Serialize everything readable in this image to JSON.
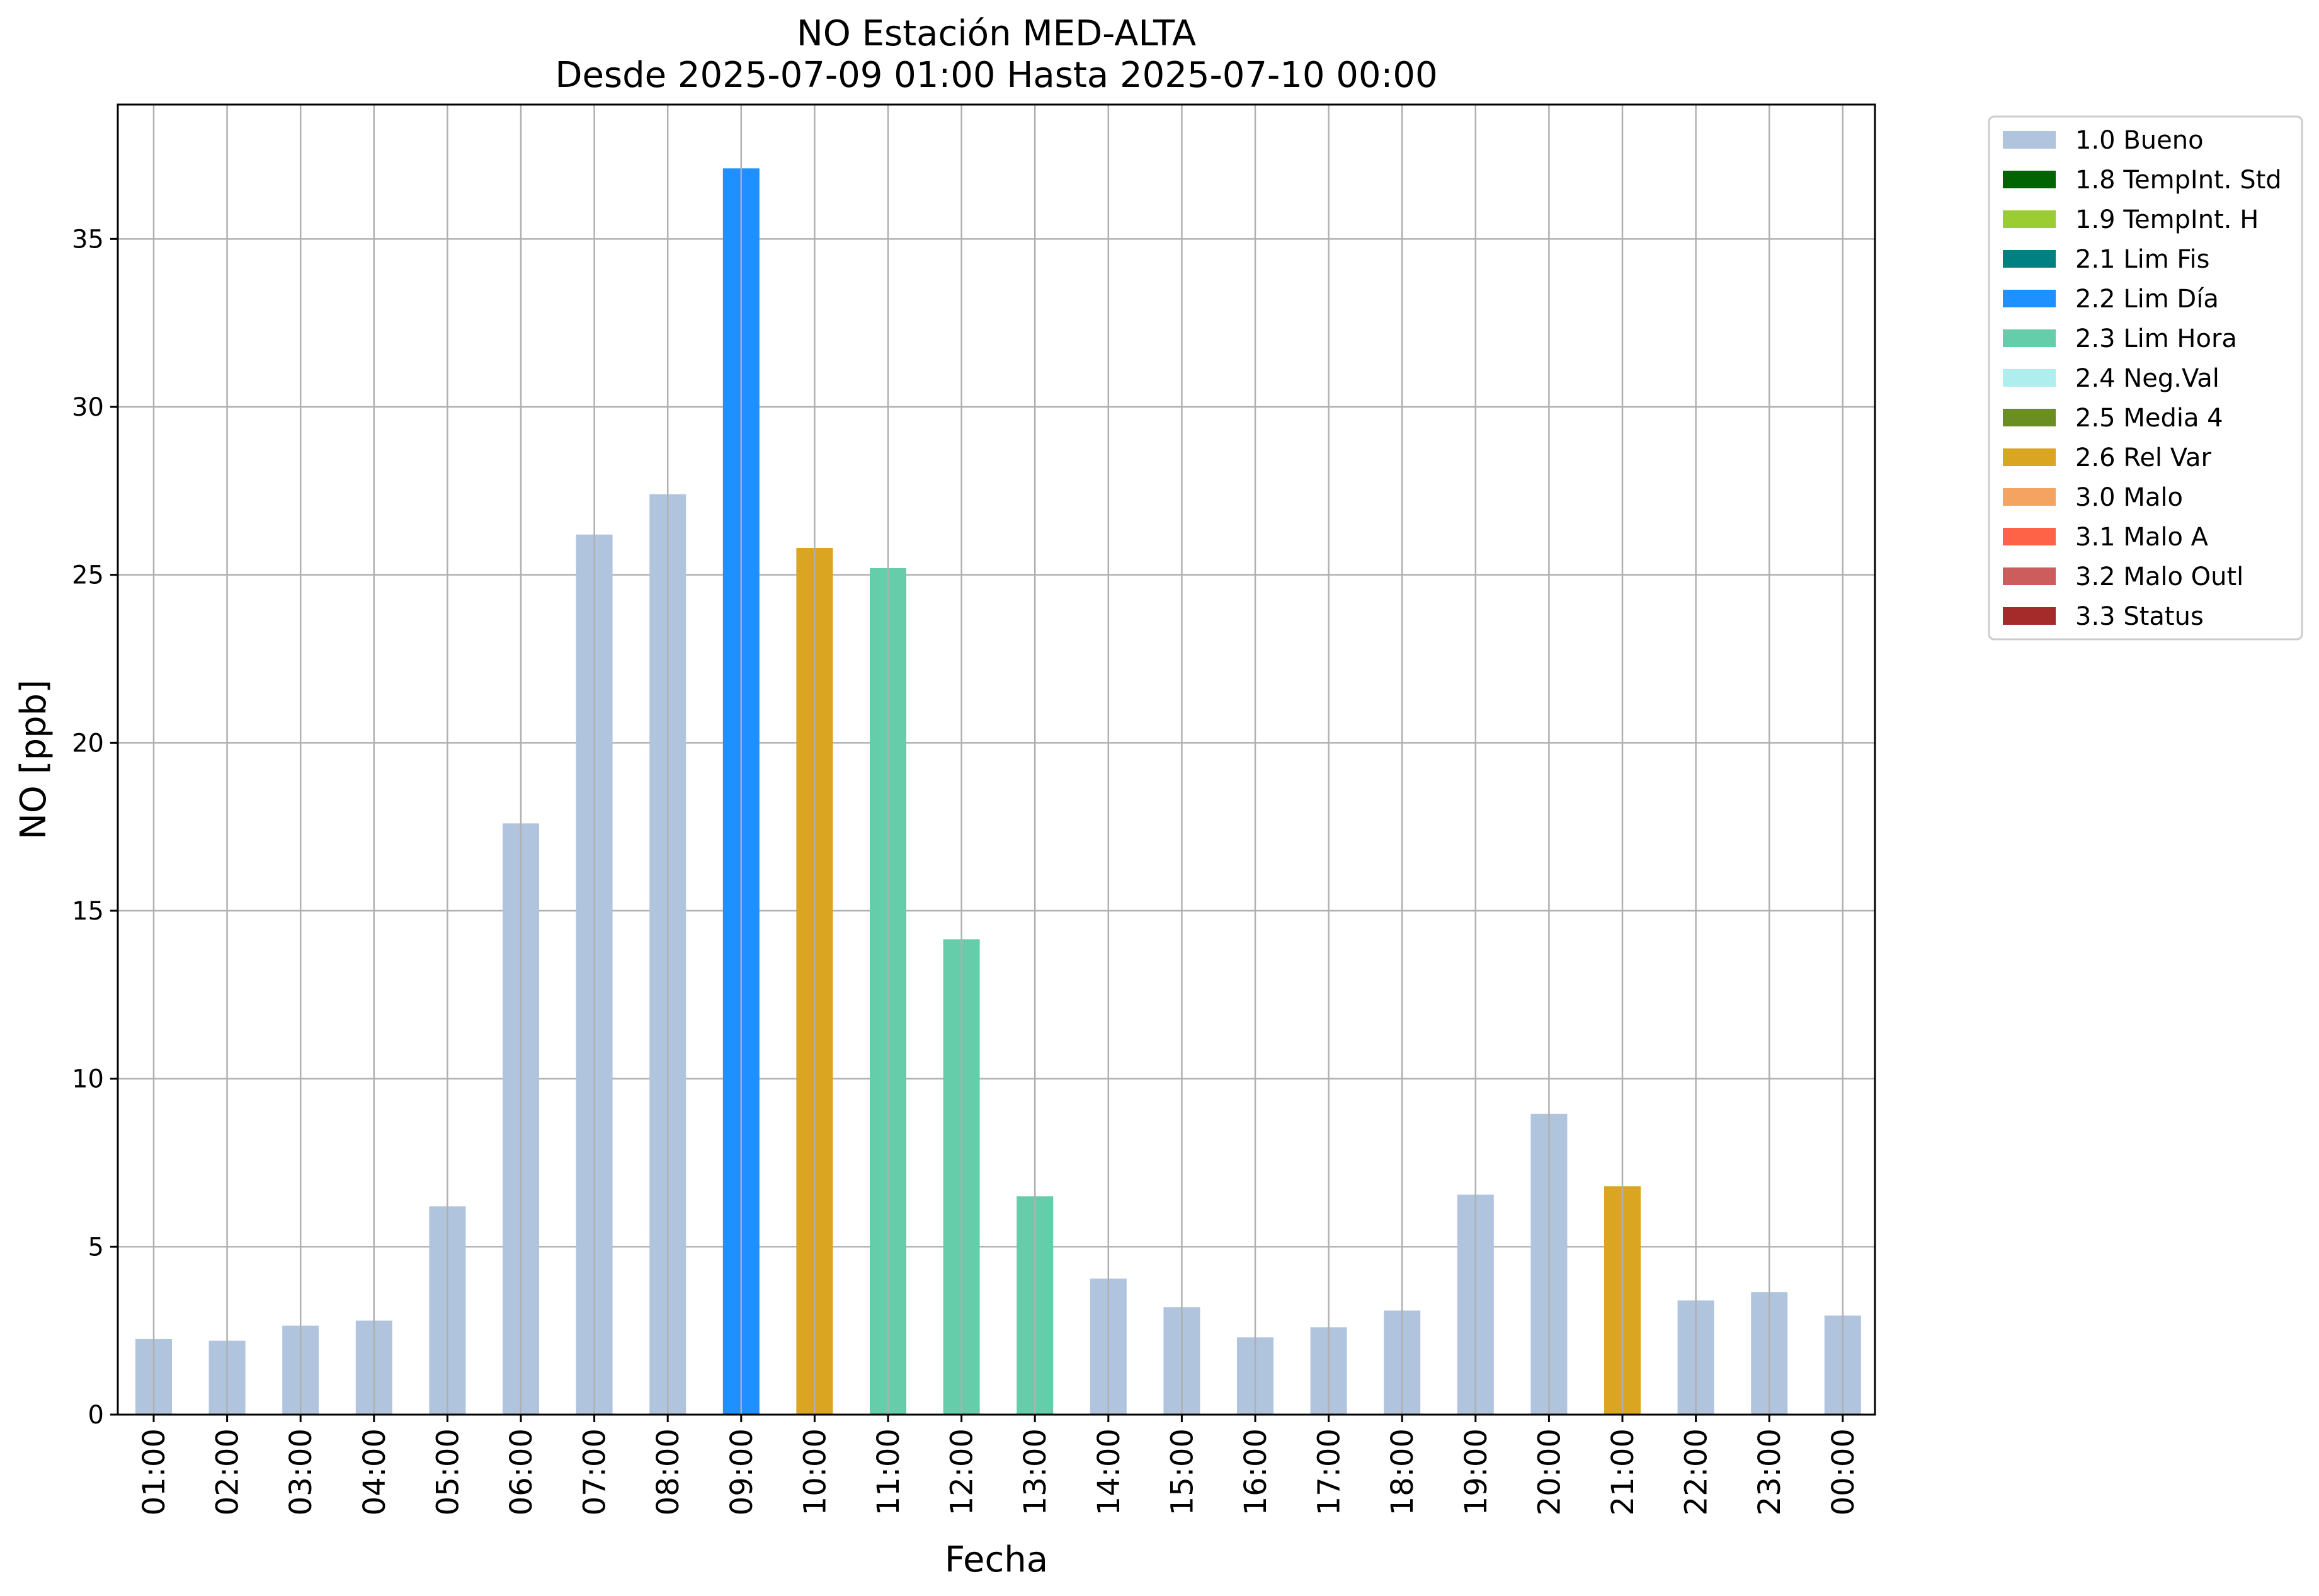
{
  "chart_data": {
    "type": "bar",
    "title": "NO Estación MED-ALTA",
    "subtitle": "Desde 2025-07-09 01:00 Hasta 2025-07-10 00:00",
    "xlabel": "Fecha",
    "ylabel": "NO [ppb]",
    "ylim": [
      0,
      39
    ],
    "yticks": [
      0,
      5,
      10,
      15,
      20,
      25,
      30,
      35
    ],
    "grid": true,
    "legend_position": "outside-top-right",
    "categories": [
      "01:00",
      "02:00",
      "03:00",
      "04:00",
      "05:00",
      "06:00",
      "07:00",
      "08:00",
      "09:00",
      "10:00",
      "11:00",
      "12:00",
      "13:00",
      "14:00",
      "15:00",
      "16:00",
      "17:00",
      "18:00",
      "19:00",
      "20:00",
      "21:00",
      "22:00",
      "23:00",
      "00:00"
    ],
    "values": [
      2.25,
      2.2,
      2.65,
      2.8,
      6.2,
      17.6,
      26.2,
      27.4,
      37.1,
      25.8,
      25.2,
      14.15,
      6.5,
      4.05,
      3.2,
      2.3,
      2.6,
      3.1,
      6.55,
      8.95,
      6.8,
      3.4,
      3.65,
      2.95
    ],
    "flags": [
      "1.0 Bueno",
      "1.0 Bueno",
      "1.0 Bueno",
      "1.0 Bueno",
      "1.0 Bueno",
      "1.0 Bueno",
      "1.0 Bueno",
      "1.0 Bueno",
      "2.2 Lim Día",
      "2.6 Rel Var",
      "2.3 Lim Hora",
      "2.3 Lim Hora",
      "2.3 Lim Hora",
      "1.0 Bueno",
      "1.0 Bueno",
      "1.0 Bueno",
      "1.0 Bueno",
      "1.0 Bueno",
      "1.0 Bueno",
      "1.0 Bueno",
      "2.6 Rel Var",
      "1.0 Bueno",
      "1.0 Bueno",
      "1.0 Bueno"
    ],
    "legend": [
      {
        "label": "1.0 Bueno",
        "color": "#b0c4de"
      },
      {
        "label": "1.8 TempInt. Std",
        "color": "#006400"
      },
      {
        "label": "1.9 TempInt. H",
        "color": "#9acd32"
      },
      {
        "label": "2.1 Lim Fis",
        "color": "#008080"
      },
      {
        "label": "2.2 Lim Día",
        "color": "#1e90ff"
      },
      {
        "label": "2.3 Lim Hora",
        "color": "#66cdaa"
      },
      {
        "label": "2.4 Neg.Val",
        "color": "#afeeee"
      },
      {
        "label": "2.5 Media 4",
        "color": "#6b8e23"
      },
      {
        "label": "2.6 Rel Var",
        "color": "#daa520"
      },
      {
        "label": "3.0 Malo",
        "color": "#f4a460"
      },
      {
        "label": "3.1 Malo A",
        "color": "#ff6347"
      },
      {
        "label": "3.2 Malo Outl",
        "color": "#cd5c5c"
      },
      {
        "label": "3.3 Status",
        "color": "#a52a2a"
      }
    ]
  }
}
